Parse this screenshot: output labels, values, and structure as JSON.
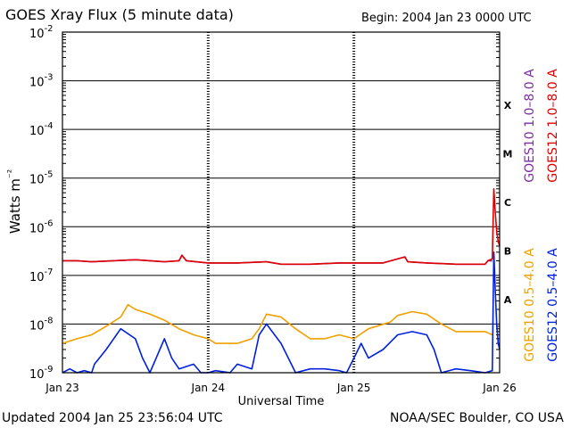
{
  "header": {
    "title": "GOES Xray Flux (5 minute data)",
    "begin": "Begin:  2004 Jan 23 0000 UTC"
  },
  "footer": {
    "updated": "Updated 2004 Jan 25 23:56:04 UTC",
    "credit": "NOAA/SEC Boulder, CO USA"
  },
  "chart_data": {
    "type": "line",
    "title": "GOES Xray Flux (5 minute data)",
    "xlabel": "Universal Time",
    "ylabel": "Watts m⁻²",
    "y_scale": "log",
    "ylim": [
      1e-09,
      0.01
    ],
    "x_range_days": [
      0,
      3
    ],
    "x_tick_labels": [
      "Jan 23",
      "Jan 24",
      "Jan 25",
      "Jan 26"
    ],
    "y_tick_labels": [
      {
        "base": "10",
        "exp": "-9"
      },
      {
        "base": "10",
        "exp": "-8"
      },
      {
        "base": "10",
        "exp": "-7"
      },
      {
        "base": "10",
        "exp": "-6"
      },
      {
        "base": "10",
        "exp": "-5"
      },
      {
        "base": "10",
        "exp": "-4"
      },
      {
        "base": "10",
        "exp": "-3"
      },
      {
        "base": "10",
        "exp": "-2"
      }
    ],
    "flare_classes": [
      {
        "label": "A",
        "exp": -7.5
      },
      {
        "label": "B",
        "exp": -6.5
      },
      {
        "label": "C",
        "exp": -5.5
      },
      {
        "label": "M",
        "exp": -4.5
      },
      {
        "label": "X",
        "exp": -3.5
      }
    ],
    "legend": {
      "placement": "right",
      "items": [
        {
          "label": "GOES10 1.0–8.0 A",
          "color": "#7b2fa0"
        },
        {
          "label": "GOES12 1.0–8.0 A",
          "color": "#e00000"
        },
        {
          "label": "GOES10 0.5–4.0 A",
          "color": "#f0a000"
        },
        {
          "label": "GOES12 0.5–4.0 A",
          "color": "#0020e0"
        }
      ]
    },
    "series": [
      {
        "name": "GOES10 1.0–8.0 A",
        "color": "#7b2fa0",
        "x": [
          0,
          0.1,
          0.2,
          0.35,
          0.5,
          0.7,
          0.8,
          0.82,
          0.85,
          1.0,
          1.2,
          1.4,
          1.5,
          1.7,
          1.9,
          2.0,
          2.2,
          2.35,
          2.37,
          2.5,
          2.7,
          2.9,
          2.92,
          2.95
        ],
        "y": [
          2e-07,
          2e-07,
          1.9e-07,
          2e-07,
          2.1e-07,
          1.9e-07,
          2e-07,
          2.6e-07,
          2e-07,
          1.8e-07,
          1.8e-07,
          1.9e-07,
          1.7e-07,
          1.7e-07,
          1.8e-07,
          1.8e-07,
          1.8e-07,
          2.4e-07,
          1.9e-07,
          1.8e-07,
          1.7e-07,
          1.7e-07,
          2e-07,
          2e-07
        ]
      },
      {
        "name": "GOES12 1.0–8.0 A",
        "color": "#e00000",
        "x": [
          0,
          0.1,
          0.2,
          0.35,
          0.5,
          0.7,
          0.8,
          0.82,
          0.85,
          1.0,
          1.2,
          1.4,
          1.5,
          1.7,
          1.9,
          2.0,
          2.2,
          2.35,
          2.37,
          2.5,
          2.7,
          2.9,
          2.92,
          2.95,
          2.96,
          2.97,
          2.98,
          2.99,
          3.0
        ],
        "y": [
          2e-07,
          2e-07,
          1.9e-07,
          2e-07,
          2.1e-07,
          1.9e-07,
          2e-07,
          2.6e-07,
          2e-07,
          1.8e-07,
          1.8e-07,
          1.9e-07,
          1.7e-07,
          1.7e-07,
          1.8e-07,
          1.8e-07,
          1.8e-07,
          2.4e-07,
          1.9e-07,
          1.8e-07,
          1.7e-07,
          1.7e-07,
          2e-07,
          2.2e-07,
          6e-06,
          2e-06,
          8e-07,
          5e-07,
          4e-07
        ]
      },
      {
        "name": "GOES10 0.5–4.0 A",
        "color": "#f0a000",
        "x": [
          0,
          0.1,
          0.2,
          0.3,
          0.4,
          0.45,
          0.5,
          0.6,
          0.7,
          0.8,
          0.9,
          1.0,
          1.05,
          1.2,
          1.3,
          1.35,
          1.4,
          1.5,
          1.6,
          1.7,
          1.8,
          1.9,
          2.0,
          2.1,
          2.25,
          2.3,
          2.4,
          2.5,
          2.6,
          2.7,
          2.8,
          2.9,
          2.95
        ],
        "y": [
          4e-09,
          5e-09,
          6e-09,
          9e-09,
          1.4e-08,
          2.5e-08,
          2e-08,
          1.6e-08,
          1.2e-08,
          8e-09,
          6e-09,
          5e-09,
          4e-09,
          4e-09,
          5e-09,
          8e-09,
          1.6e-08,
          1.4e-08,
          8e-09,
          5e-09,
          5e-09,
          6e-09,
          5e-09,
          8e-09,
          1.1e-08,
          1.5e-08,
          1.8e-08,
          1.6e-08,
          1e-08,
          7e-09,
          7e-09,
          7e-09,
          6e-09
        ]
      },
      {
        "name": "GOES12 0.5–4.0 A",
        "color": "#0020e0",
        "x": [
          0,
          0.05,
          0.1,
          0.15,
          0.2,
          0.22,
          0.3,
          0.4,
          0.5,
          0.55,
          0.6,
          0.7,
          0.75,
          0.8,
          0.9,
          0.95,
          1.0,
          1.05,
          1.15,
          1.2,
          1.3,
          1.35,
          1.4,
          1.5,
          1.55,
          1.6,
          1.7,
          1.8,
          1.9,
          1.95,
          2.0,
          2.05,
          2.1,
          2.2,
          2.3,
          2.4,
          2.5,
          2.55,
          2.6,
          2.7,
          2.8,
          2.9,
          2.95,
          2.96,
          2.97,
          2.98,
          2.99,
          3.0
        ],
        "y": [
          1e-09,
          1.2e-09,
          1e-09,
          1.1e-09,
          1e-09,
          1.5e-09,
          3e-09,
          8e-09,
          5e-09,
          2e-09,
          1e-09,
          5e-09,
          2e-09,
          1.2e-09,
          1.5e-09,
          1e-09,
          1e-09,
          1.1e-09,
          1e-09,
          1.5e-09,
          1.2e-09,
          6e-09,
          1e-08,
          4e-09,
          2e-09,
          1e-09,
          1.2e-09,
          1.2e-09,
          1.1e-09,
          1e-09,
          2e-09,
          4e-09,
          2e-09,
          3e-09,
          6e-09,
          7e-09,
          6e-09,
          3e-09,
          1e-09,
          1.2e-09,
          1.1e-09,
          1e-09,
          1.1e-09,
          3e-07,
          5e-08,
          1e-08,
          4e-09,
          3e-09
        ]
      }
    ]
  }
}
